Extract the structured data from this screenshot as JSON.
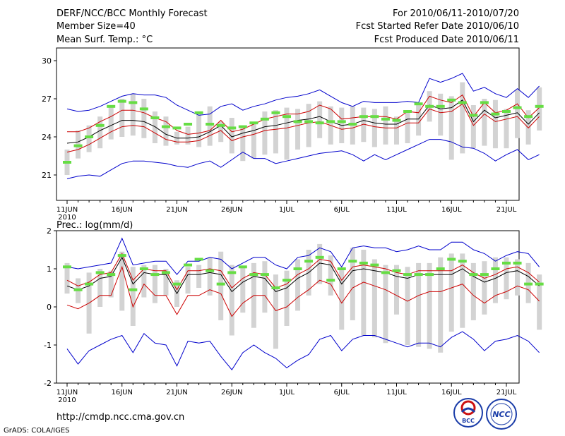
{
  "header": {
    "title": "DERF/NCC/BCC Monthly Forecast",
    "member_size": "Member Size=40",
    "variable": "Mean Surf. Temp.: °C",
    "period": "For 2010/06/11-2010/07/20",
    "refer_date": "Fcst Started Refer Date 2010/06/10",
    "produced_date": "Fcst Produced Date 2010/06/11"
  },
  "footer": {
    "url": "http://cmdp.ncc.cma.gov.cn",
    "credit": "GrADS: COLA/IGES",
    "logo_bcc_text": "BCC",
    "logo_ncc_text": "NCC"
  },
  "colors": {
    "envelope_blue": "#0000cc",
    "envelope_red": "#cc0000",
    "mean_black": "#000000",
    "obs_green": "#66dd44",
    "bar_gray": "#d3d3d3"
  },
  "chart_data": [
    {
      "type": "line",
      "title": "Mean Surf. Temp.: °C",
      "x_ticks": [
        "11JUN",
        "16JUN",
        "21JUN",
        "26JUN",
        "1JUL",
        "6JUL",
        "11JUL",
        "16JUL",
        "21JUL"
      ],
      "x_sub_label": "2010",
      "y_ticks": [
        21,
        24,
        27,
        30
      ],
      "ylim": [
        19,
        31
      ],
      "series": [
        {
          "name": "max",
          "values": [
            26.2,
            26.0,
            26.1,
            26.4,
            26.8,
            27.2,
            27.4,
            27.3,
            27.3,
            27.1,
            26.5,
            26.1,
            25.7,
            25.8,
            26.4,
            26.6,
            26.1,
            26.4,
            26.6,
            26.9,
            27.1,
            27.2,
            27.4,
            27.7,
            27.2,
            26.7,
            26.4,
            26.8,
            26.7,
            26.7,
            26.7,
            26.8,
            26.7,
            28.6,
            28.3,
            28.6,
            29.0,
            27.6,
            27.9,
            27.4,
            27.1,
            27.8,
            27.1,
            28.0
          ]
        },
        {
          "name": "upper",
          "values": [
            24.4,
            24.4,
            24.7,
            25.2,
            25.6,
            26.1,
            26.1,
            25.9,
            25.5,
            25.2,
            24.5,
            24.2,
            24.3,
            24.5,
            25.3,
            24.4,
            24.6,
            25.0,
            25.4,
            25.6,
            25.8,
            25.8,
            26.0,
            26.5,
            26.2,
            25.4,
            25.5,
            25.6,
            25.6,
            25.6,
            25.4,
            26.0,
            25.9,
            27.2,
            26.9,
            26.7,
            27.3,
            25.6,
            26.7,
            25.9,
            26.1,
            26.6,
            25.5,
            26.3
          ]
        },
        {
          "name": "mean",
          "values": [
            23.5,
            23.6,
            24.0,
            24.5,
            24.9,
            25.3,
            25.3,
            25.2,
            24.8,
            24.2,
            23.9,
            23.9,
            24.0,
            24.4,
            24.9,
            24.0,
            24.3,
            24.5,
            24.8,
            24.9,
            25.1,
            25.3,
            25.4,
            25.6,
            25.2,
            24.9,
            25.0,
            25.3,
            25.1,
            25.0,
            25.0,
            25.4,
            25.4,
            26.5,
            26.2,
            26.3,
            26.9,
            25.2,
            26.1,
            25.5,
            25.7,
            25.9,
            25.0,
            25.9
          ]
        },
        {
          "name": "lower",
          "values": [
            22.8,
            23.0,
            23.4,
            23.9,
            24.4,
            24.8,
            24.9,
            24.8,
            24.3,
            23.8,
            23.6,
            23.6,
            23.7,
            24.1,
            24.5,
            23.7,
            24.0,
            24.2,
            24.5,
            24.6,
            24.7,
            24.9,
            25.1,
            25.2,
            24.9,
            24.6,
            24.7,
            25.0,
            24.8,
            24.7,
            24.7,
            25.1,
            25.1,
            26.2,
            25.9,
            26.0,
            26.6,
            24.9,
            25.8,
            25.2,
            25.4,
            25.6,
            24.7,
            25.6
          ]
        },
        {
          "name": "min",
          "values": [
            20.7,
            20.9,
            21.0,
            20.9,
            21.4,
            21.9,
            22.1,
            22.1,
            22.0,
            21.9,
            21.7,
            21.6,
            21.9,
            22.1,
            21.6,
            22.2,
            22.8,
            22.3,
            22.3,
            21.9,
            22.1,
            22.3,
            22.5,
            22.7,
            22.8,
            22.9,
            22.6,
            22.1,
            22.6,
            22.2,
            22.6,
            23.0,
            23.4,
            23.8,
            23.8,
            23.6,
            23.2,
            23.1,
            22.7,
            22.1,
            22.6,
            23.0,
            22.2,
            22.6
          ]
        },
        {
          "name": "observed",
          "values": [
            22.0,
            23.3,
            24.0,
            24.9,
            26.4,
            26.8,
            26.7,
            26.2,
            25.5,
            24.8,
            24.7,
            25.0,
            25.9,
            25.0,
            24.9,
            24.7,
            24.8,
            25.1,
            25.4,
            25.9,
            25.6,
            25.2,
            25.2,
            25.1,
            25.2,
            25.2,
            25.0,
            25.6,
            25.6,
            25.4,
            25.3,
            26.0,
            26.6,
            26.4,
            26.4,
            26.9,
            26.7,
            25.7,
            26.7,
            25.8,
            26.0,
            26.3,
            25.6,
            26.4
          ]
        },
        {
          "name": "range_top",
          "values": [
            23.0,
            24.5,
            24.9,
            25.6,
            26.4,
            27.0,
            27.4,
            27.0,
            26.0,
            25.6,
            24.4,
            24.8,
            25.8,
            26.4,
            25.2,
            25.5,
            24.9,
            25.1,
            26.0,
            26.1,
            26.3,
            26.2,
            26.6,
            26.8,
            26.4,
            26.3,
            26.4,
            26.3,
            26.2,
            26.4,
            25.6,
            26.1,
            26.5,
            27.6,
            27.4,
            27.2,
            28.3,
            26.5,
            27.0,
            26.9,
            26.2,
            27.7,
            26.1,
            27.9
          ]
        },
        {
          "name": "range_bottom",
          "values": [
            21.0,
            22.3,
            22.8,
            23.1,
            23.8,
            24.0,
            24.1,
            23.9,
            23.5,
            23.3,
            23.4,
            23.4,
            23.2,
            23.3,
            23.6,
            22.7,
            22.1,
            22.3,
            22.6,
            22.7,
            22.2,
            23.0,
            23.2,
            23.9,
            23.4,
            23.5,
            23.4,
            23.6,
            23.2,
            23.4,
            23.4,
            23.5,
            24.1,
            25.2,
            24.1,
            22.2,
            22.7,
            23.1,
            23.3,
            23.1,
            23.1,
            23.9,
            23.4,
            24.5
          ]
        }
      ]
    },
    {
      "type": "line",
      "title": "Prec.: log(mm/d)",
      "x_ticks": [
        "11JUN",
        "16JUN",
        "21JUN",
        "26JUN",
        "1JUL",
        "6JUL",
        "11JUL",
        "16JUL",
        "21JUL"
      ],
      "x_sub_label": "2010",
      "y_ticks": [
        -2,
        -1,
        0,
        1,
        2
      ],
      "ylim": [
        -2.0,
        2.0
      ],
      "series": [
        {
          "name": "max",
          "values": [
            1.05,
            1.0,
            1.05,
            1.1,
            1.15,
            1.8,
            1.1,
            1.15,
            1.2,
            1.2,
            0.85,
            1.2,
            1.2,
            1.3,
            1.25,
            1.0,
            1.15,
            1.3,
            1.3,
            1.1,
            1.0,
            1.3,
            1.35,
            1.55,
            1.45,
            1.05,
            1.55,
            1.6,
            1.55,
            1.55,
            1.45,
            1.5,
            1.6,
            1.5,
            1.5,
            1.7,
            1.7,
            1.5,
            1.4,
            1.2,
            1.35,
            1.45,
            1.4,
            1.05
          ]
        },
        {
          "name": "upper",
          "values": [
            0.7,
            0.55,
            0.65,
            0.85,
            0.9,
            1.4,
            0.7,
            1.0,
            0.95,
            0.95,
            0.45,
            0.95,
            0.95,
            1.0,
            0.95,
            0.5,
            0.75,
            0.9,
            0.85,
            0.5,
            0.6,
            0.85,
            1.0,
            1.25,
            1.2,
            0.7,
            1.05,
            1.1,
            1.05,
            1.0,
            0.9,
            0.85,
            0.95,
            0.95,
            0.95,
            0.95,
            1.1,
            0.9,
            0.75,
            0.85,
            1.0,
            1.05,
            0.9,
            0.65
          ]
        },
        {
          "name": "mean",
          "values": [
            0.55,
            0.45,
            0.55,
            0.75,
            0.8,
            1.3,
            0.6,
            0.9,
            0.85,
            0.85,
            0.35,
            0.85,
            0.85,
            0.9,
            0.85,
            0.4,
            0.65,
            0.8,
            0.75,
            0.4,
            0.5,
            0.75,
            0.9,
            1.15,
            1.1,
            0.6,
            0.95,
            1.0,
            0.95,
            0.9,
            0.8,
            0.75,
            0.85,
            0.85,
            0.85,
            0.85,
            1.0,
            0.8,
            0.65,
            0.75,
            0.9,
            0.95,
            0.8,
            0.55
          ]
        },
        {
          "name": "lower",
          "values": [
            0.05,
            -0.05,
            0.1,
            0.3,
            0.3,
            1.05,
            0.0,
            0.6,
            0.3,
            0.3,
            -0.2,
            0.3,
            0.3,
            0.45,
            0.35,
            -0.25,
            0.1,
            0.3,
            0.3,
            -0.1,
            0.0,
            0.25,
            0.45,
            0.7,
            0.6,
            0.1,
            0.5,
            0.65,
            0.55,
            0.45,
            0.3,
            0.15,
            0.3,
            0.4,
            0.4,
            0.5,
            0.6,
            0.3,
            0.1,
            0.3,
            0.4,
            0.55,
            0.45,
            0.15
          ]
        },
        {
          "name": "min",
          "values": [
            -1.1,
            -1.5,
            -1.15,
            -1.0,
            -0.85,
            -0.75,
            -1.2,
            -0.7,
            -0.95,
            -1.0,
            -1.55,
            -0.9,
            -0.95,
            -0.9,
            -1.3,
            -1.65,
            -1.2,
            -1.0,
            -1.2,
            -1.35,
            -1.6,
            -1.4,
            -1.25,
            -0.85,
            -0.75,
            -1.15,
            -0.85,
            -0.75,
            -0.75,
            -0.85,
            -0.95,
            -1.05,
            -0.95,
            -0.95,
            -1.05,
            -0.8,
            -0.65,
            -0.85,
            -1.15,
            -0.9,
            -0.85,
            -0.75,
            -0.9,
            -1.2
          ]
        },
        {
          "name": "observed",
          "values": [
            1.05,
            0.45,
            0.6,
            0.9,
            0.85,
            1.35,
            0.45,
            1.0,
            0.85,
            0.9,
            0.6,
            1.1,
            1.25,
            0.95,
            0.6,
            0.9,
            1.05,
            0.85,
            0.85,
            0.5,
            0.7,
            1.0,
            1.2,
            1.3,
            0.7,
            1.0,
            1.2,
            1.15,
            1.1,
            0.9,
            0.95,
            0.85,
            0.85,
            0.85,
            1.0,
            1.25,
            1.2,
            0.85,
            0.85,
            1.0,
            1.15,
            1.15,
            0.6,
            0.6
          ]
        },
        {
          "name": "range_top",
          "values": [
            1.15,
            0.75,
            0.9,
            1.0,
            0.95,
            1.45,
            1.05,
            1.1,
            1.1,
            1.0,
            0.7,
            1.05,
            1.1,
            1.3,
            1.45,
            1.1,
            1.05,
            1.15,
            1.2,
            0.85,
            0.95,
            1.25,
            1.5,
            1.65,
            1.35,
            1.0,
            1.55,
            1.5,
            1.25,
            1.1,
            1.1,
            1.05,
            1.15,
            1.15,
            1.3,
            1.4,
            1.4,
            1.15,
            1.2,
            1.3,
            1.3,
            1.25,
            1.15,
            0.85
          ]
        },
        {
          "name": "range_bottom",
          "values": [
            0.35,
            0.1,
            -0.7,
            0.0,
            0.25,
            -0.1,
            -0.5,
            0.25,
            0.1,
            0.3,
            0.0,
            0.35,
            0.5,
            0.3,
            -0.35,
            -0.75,
            -0.15,
            -0.55,
            -0.15,
            -1.1,
            -0.5,
            -0.1,
            0.3,
            0.6,
            0.3,
            -0.6,
            -0.35,
            -0.75,
            -0.8,
            -0.95,
            -0.2,
            -1.0,
            -1.05,
            -1.1,
            -1.2,
            -0.65,
            -0.55,
            -0.35,
            -0.2,
            0.1,
            0.2,
            0.3,
            0.1,
            -0.6
          ]
        }
      ]
    }
  ]
}
